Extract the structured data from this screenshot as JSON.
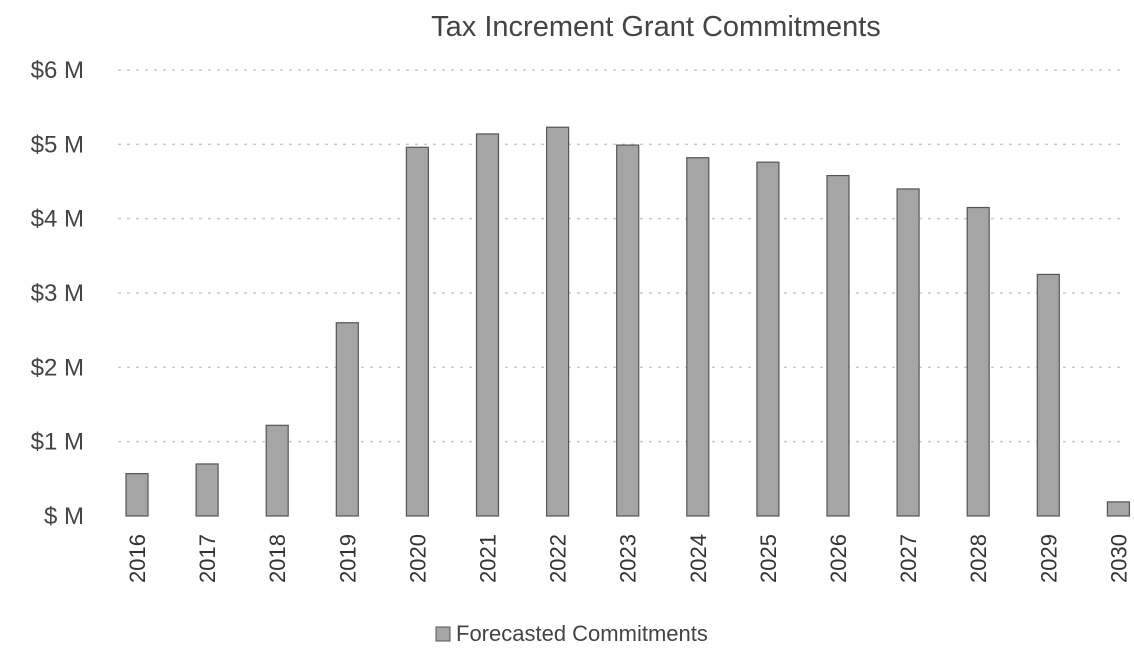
{
  "chart_data": {
    "type": "bar",
    "title": "Tax Increment Grant Commitments",
    "xlabel": "",
    "ylabel": "",
    "categories": [
      "2016",
      "2017",
      "2018",
      "2019",
      "2020",
      "2021",
      "2022",
      "2023",
      "2024",
      "2025",
      "2026",
      "2027",
      "2028",
      "2029",
      "2030"
    ],
    "series": [
      {
        "name": "Forecasted Commitments",
        "values": [
          0.57,
          0.7,
          1.22,
          2.6,
          4.96,
          5.14,
          5.23,
          4.99,
          4.82,
          4.76,
          4.58,
          4.4,
          4.15,
          3.25,
          0.19
        ],
        "color": "#a5a5a5"
      }
    ],
    "ylim": [
      0,
      6
    ],
    "y_ticks": [
      0,
      1,
      2,
      3,
      4,
      5,
      6
    ],
    "y_tick_labels": [
      "$ M",
      "$1 M",
      "$2 M",
      "$3 M",
      "$4 M",
      "$5 M",
      "$6 M"
    ],
    "grid": true,
    "legend_position": "bottom-center"
  }
}
